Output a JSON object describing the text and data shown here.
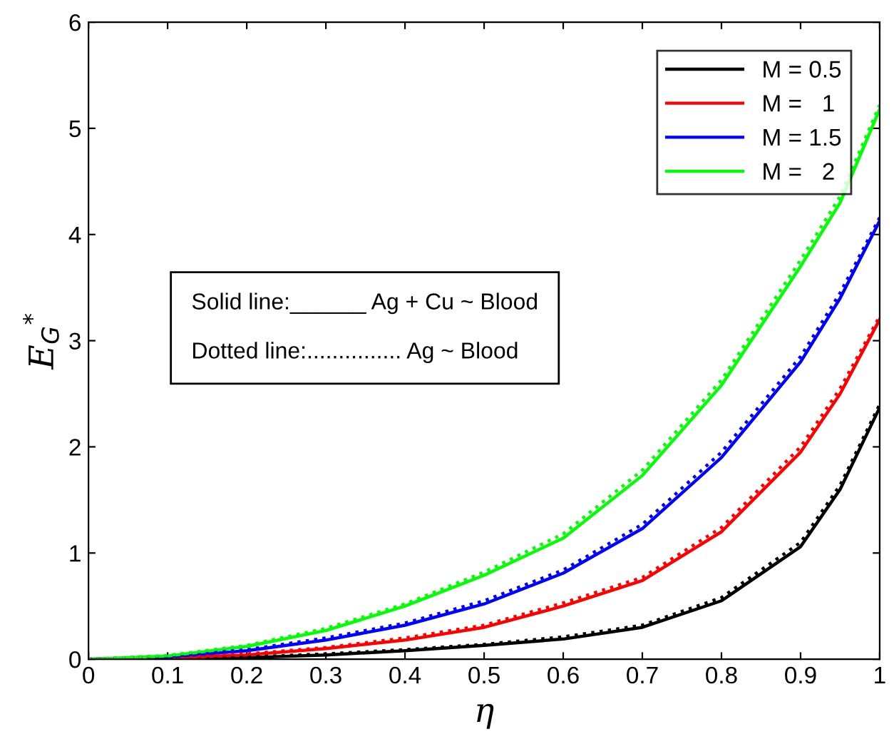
{
  "chart_data": {
    "type": "line",
    "xlabel": "η",
    "ylabel": "E$_{G}$$^{*}$",
    "x": [
      0,
      0.1,
      0.2,
      0.3,
      0.4,
      0.5,
      0.6,
      0.7,
      0.8,
      0.9,
      0.95,
      1
    ],
    "series": [
      {
        "name": "M = 0.5",
        "color": "#000000",
        "line_style": "solid",
        "values": [
          0,
          0.003,
          0.015,
          0.04,
          0.08,
          0.13,
          0.19,
          0.3,
          0.55,
          1.06,
          1.6,
          2.37
        ]
      },
      {
        "name": "M =   1",
        "color": "#ff0000",
        "line_style": "solid",
        "values": [
          0,
          0.01,
          0.04,
          0.1,
          0.18,
          0.3,
          0.5,
          0.74,
          1.2,
          1.95,
          2.5,
          3.2
        ]
      },
      {
        "name": "M = 1.5",
        "color": "#0000ff",
        "line_style": "solid",
        "values": [
          0,
          0.02,
          0.08,
          0.18,
          0.32,
          0.52,
          0.81,
          1.23,
          1.9,
          2.8,
          3.4,
          4.13
        ]
      },
      {
        "name": "M =   2",
        "color": "#00ff00",
        "line_style": "solid",
        "values": [
          0,
          0.03,
          0.12,
          0.27,
          0.5,
          0.79,
          1.14,
          1.73,
          2.58,
          3.7,
          4.3,
          5.18
        ]
      },
      {
        "color": "#000000",
        "line_style": "dotted",
        "values": [
          0,
          0.004,
          0.02,
          0.05,
          0.09,
          0.14,
          0.21,
          0.32,
          0.58,
          1.1,
          1.64,
          2.4
        ]
      },
      {
        "color": "#ff0000",
        "line_style": "dotted",
        "values": [
          0,
          0.012,
          0.05,
          0.11,
          0.2,
          0.32,
          0.53,
          0.77,
          1.24,
          2.0,
          2.55,
          3.23
        ]
      },
      {
        "color": "#0000ff",
        "line_style": "dotted",
        "values": [
          0,
          0.025,
          0.09,
          0.2,
          0.34,
          0.55,
          0.84,
          1.27,
          1.95,
          2.85,
          3.45,
          4.16
        ]
      },
      {
        "color": "#00ff00",
        "line_style": "dotted",
        "values": [
          0,
          0.035,
          0.13,
          0.29,
          0.52,
          0.82,
          1.18,
          1.78,
          2.63,
          3.76,
          4.36,
          5.22
        ]
      }
    ],
    "xlim": [
      0,
      1
    ],
    "xticks": [
      0,
      0.1,
      0.2,
      0.3,
      0.4,
      0.5,
      0.6,
      0.7,
      0.8,
      0.9,
      1
    ],
    "ylim": [
      0,
      6
    ],
    "yticks": [
      0,
      1,
      2,
      3,
      4,
      5,
      6
    ],
    "grid": false,
    "legend": "top right",
    "annotations": [
      "Solid line:______ Ag + Cu ~ Blood",
      "Dotted line:............... Ag ~ Blood"
    ]
  }
}
